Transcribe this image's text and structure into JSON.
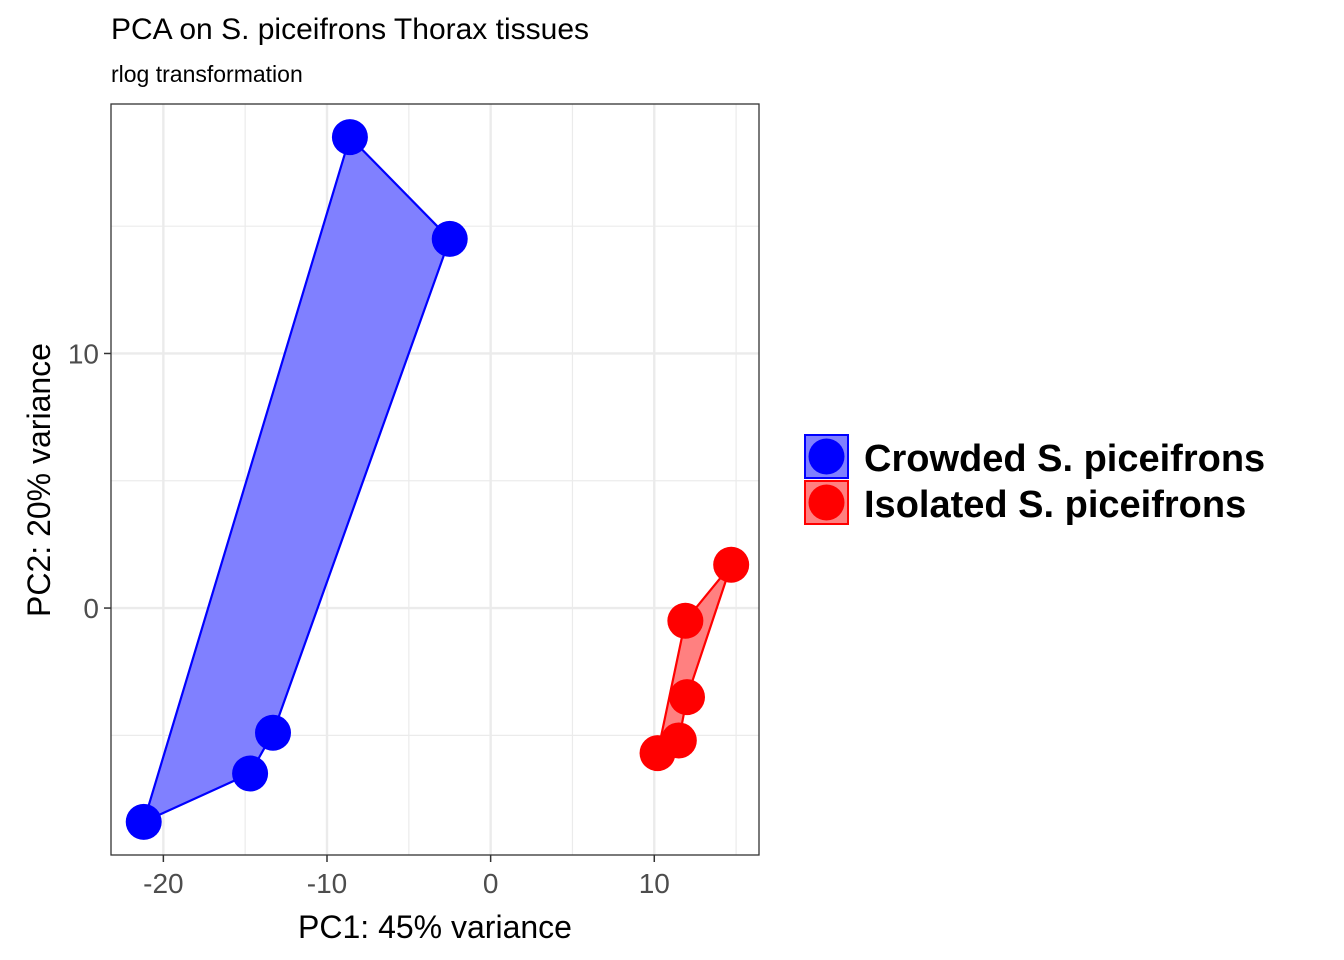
{
  "chart_data": {
    "type": "scatter",
    "title": "PCA on S. piceifrons Thorax tissues",
    "subtitle": "rlog transformation",
    "xlabel": "PC1: 45% variance",
    "ylabel": "PC2: 20% variance",
    "xlim": [
      -23.2,
      16.4
    ],
    "ylim": [
      -9.7,
      19.8
    ],
    "xticks": [
      -20,
      -10,
      0,
      10
    ],
    "xtick_labels": [
      "-20",
      "-10",
      "0",
      "10"
    ],
    "yticks": [
      0,
      10
    ],
    "ytick_labels": [
      "0",
      "10"
    ],
    "x_minor_gridlines": [
      -15,
      -5,
      5,
      15
    ],
    "y_minor_gridlines": [
      -5,
      5,
      15
    ],
    "grid": true,
    "legend_position": "right",
    "series": [
      {
        "name": "Crowded S. piceifrons",
        "color": "#0000ff",
        "hull_fill": "#8080ff",
        "points": [
          {
            "x": -8.6,
            "y": 18.5
          },
          {
            "x": -2.5,
            "y": 14.5
          },
          {
            "x": -13.3,
            "y": -4.9
          },
          {
            "x": -14.7,
            "y": -6.5
          },
          {
            "x": -21.2,
            "y": -8.4
          }
        ],
        "hull_order": [
          4,
          0,
          1,
          2,
          3
        ]
      },
      {
        "name": "Isolated S. piceifrons",
        "color": "#ff0000",
        "hull_fill": "#ff8080",
        "points": [
          {
            "x": 14.7,
            "y": 1.7
          },
          {
            "x": 11.9,
            "y": -0.5
          },
          {
            "x": 12.0,
            "y": -3.5
          },
          {
            "x": 11.5,
            "y": -5.2
          },
          {
            "x": 10.2,
            "y": -5.7
          }
        ],
        "hull_order": [
          4,
          3,
          2,
          0,
          1
        ]
      }
    ]
  }
}
